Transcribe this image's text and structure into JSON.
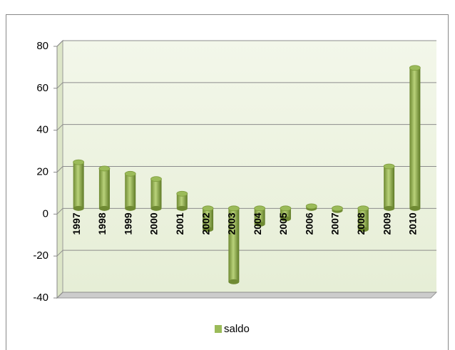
{
  "chart_data": {
    "type": "bar",
    "categories": [
      "1997",
      "1998",
      "1999",
      "2000",
      "2001",
      "2002",
      "2003",
      "2004",
      "2005",
      "2006",
      "2007",
      "2008",
      "2009",
      "2010"
    ],
    "series": [
      {
        "name": "saldo",
        "color": "#9bbb59",
        "values": [
          22,
          19,
          16.5,
          14,
          7,
          -10,
          -35,
          -7.5,
          -5,
          1,
          -1,
          -10,
          20,
          67
        ]
      }
    ],
    "ylim": [
      -40,
      80
    ],
    "yticks": [
      -40,
      -20,
      0,
      20,
      40,
      60,
      80
    ],
    "grid": true,
    "legend": "bottom"
  }
}
